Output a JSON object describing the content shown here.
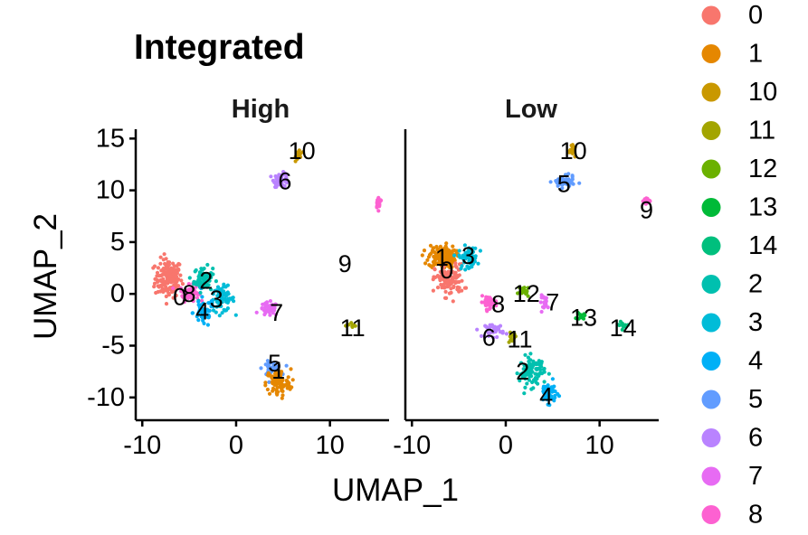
{
  "chart_data": {
    "type": "scatter",
    "title": "Integrated",
    "xlabel": "UMAP_1",
    "ylabel": "UMAP_2",
    "xlim": [
      -10.7,
      16.3
    ],
    "ylim": [
      -12.2,
      15.9
    ],
    "xticks": [
      -10,
      0,
      10
    ],
    "yticks": [
      15,
      10,
      5,
      0,
      -5,
      -10
    ],
    "xtick_labels": [
      "-10",
      "0",
      "10"
    ],
    "ytick_labels": [
      "15",
      "10",
      "5",
      "0",
      "-5",
      "-10"
    ],
    "grid": false,
    "legend_position": "right",
    "legend": [
      {
        "name": "0",
        "color": "#F8766D"
      },
      {
        "name": "1",
        "color": "#E58700"
      },
      {
        "name": "10",
        "color": "#C99800"
      },
      {
        "name": "11",
        "color": "#A3A500"
      },
      {
        "name": "12",
        "color": "#6BB100"
      },
      {
        "name": "13",
        "color": "#00BA38"
      },
      {
        "name": "14",
        "color": "#00BF7D"
      },
      {
        "name": "2",
        "color": "#00C0AF"
      },
      {
        "name": "3",
        "color": "#00BCD8"
      },
      {
        "name": "4",
        "color": "#00B0F6"
      },
      {
        "name": "5",
        "color": "#619CFF"
      },
      {
        "name": "6",
        "color": "#B983FF"
      },
      {
        "name": "7",
        "color": "#E76BF3"
      },
      {
        "name": "8",
        "color": "#FD61D1"
      }
    ],
    "panels": [
      {
        "name": "High",
        "clusters": [
          {
            "id": "0",
            "color": "#F8766D",
            "center": [
              -7.2,
              1.5
            ],
            "spread": [
              1.3,
              1.7
            ],
            "n": 160
          },
          {
            "id": "8",
            "color": "#FD61D1",
            "center": [
              -5.0,
              0.1
            ],
            "spread": [
              0.9,
              0.7
            ],
            "n": 55
          },
          {
            "id": "2",
            "color": "#00C0AF",
            "center": [
              -3.5,
              1.4
            ],
            "spread": [
              0.9,
              1.1
            ],
            "n": 65
          },
          {
            "id": "3",
            "color": "#00BCD8",
            "center": [
              -1.5,
              -0.5
            ],
            "spread": [
              1.2,
              1.1
            ],
            "n": 70
          },
          {
            "id": "4",
            "color": "#00B0F6",
            "center": [
              -3.5,
              -1.8
            ],
            "spread": [
              1.0,
              1.3
            ],
            "n": 45
          },
          {
            "id": "7",
            "color": "#E76BF3",
            "center": [
              3.5,
              -1.5
            ],
            "spread": [
              0.9,
              0.6
            ],
            "n": 45
          },
          {
            "id": "10",
            "color": "#C99800",
            "center": [
              6.7,
              13.5
            ],
            "spread": [
              0.3,
              0.5
            ],
            "n": 22
          },
          {
            "id": "6",
            "color": "#B983FF",
            "center": [
              4.8,
              11.0
            ],
            "spread": [
              0.7,
              0.6
            ],
            "n": 50
          },
          {
            "id": "5",
            "color": "#619CFF",
            "center": [
              3.8,
              -7.2
            ],
            "spread": [
              0.9,
              0.6
            ],
            "n": 45
          },
          {
            "id": "1",
            "color": "#E58700",
            "center": [
              4.5,
              -8.6
            ],
            "spread": [
              1.2,
              1.2
            ],
            "n": 95
          },
          {
            "id": "9",
            "color": "#FD61D1",
            "center": [
              15.2,
              8.8
            ],
            "spread": [
              0.3,
              0.5
            ],
            "n": 22
          },
          {
            "id": "11",
            "color": "#A3A500",
            "center": [
              12.3,
              -3.1
            ],
            "spread": [
              0.6,
              0.3
            ],
            "n": 8
          }
        ],
        "labels": [
          {
            "text": "10",
            "x": 7.0,
            "y": 13.8
          },
          {
            "text": "6",
            "x": 5.2,
            "y": 10.9
          },
          {
            "text": "9",
            "x": 11.6,
            "y": 2.9
          },
          {
            "text": "2",
            "x": -3.2,
            "y": 1.3
          },
          {
            "text": "0",
            "x": -6.0,
            "y": -0.3
          },
          {
            "text": "8",
            "x": -5.0,
            "y": 0.0
          },
          {
            "text": "3",
            "x": -2.1,
            "y": -0.5
          },
          {
            "text": "4",
            "x": -3.6,
            "y": -1.7
          },
          {
            "text": "7",
            "x": 4.3,
            "y": -1.8
          },
          {
            "text": "11",
            "x": 12.4,
            "y": -3.3
          },
          {
            "text": "5",
            "x": 4.1,
            "y": -6.7
          },
          {
            "text": "1",
            "x": 4.5,
            "y": -7.4
          }
        ]
      },
      {
        "name": "Low",
        "clusters": [
          {
            "id": "1",
            "color": "#E58700",
            "center": [
              -6.8,
              3.6
            ],
            "spread": [
              1.3,
              1.0
            ],
            "n": 140
          },
          {
            "id": "0",
            "color": "#F8766D",
            "center": [
              -6.0,
              1.3
            ],
            "spread": [
              1.4,
              1.4
            ],
            "n": 110
          },
          {
            "id": "3",
            "color": "#00BCD8",
            "center": [
              -4.0,
              3.5
            ],
            "spread": [
              0.9,
              1.0
            ],
            "n": 55
          },
          {
            "id": "8",
            "color": "#FD61D1",
            "center": [
              -1.8,
              -0.8
            ],
            "spread": [
              0.8,
              0.5
            ],
            "n": 40
          },
          {
            "id": "12",
            "color": "#6BB100",
            "center": [
              2.0,
              0.2
            ],
            "spread": [
              0.6,
              0.5
            ],
            "n": 18
          },
          {
            "id": "7",
            "color": "#E76BF3",
            "center": [
              4.2,
              -0.8
            ],
            "spread": [
              0.5,
              0.6
            ],
            "n": 20
          },
          {
            "id": "6",
            "color": "#B983FF",
            "center": [
              -1.2,
              -3.5
            ],
            "spread": [
              0.9,
              0.6
            ],
            "n": 35
          },
          {
            "id": "11",
            "color": "#A3A500",
            "center": [
              0.6,
              -4.2
            ],
            "spread": [
              0.5,
              0.4
            ],
            "n": 12
          },
          {
            "id": "2",
            "color": "#00C0AF",
            "center": [
              2.8,
              -7.5
            ],
            "spread": [
              1.2,
              1.3
            ],
            "n": 90
          },
          {
            "id": "4",
            "color": "#00B0F6",
            "center": [
              4.5,
              -9.5
            ],
            "spread": [
              0.8,
              0.9
            ],
            "n": 55
          },
          {
            "id": "10",
            "color": "#C99800",
            "center": [
              7.2,
              13.8
            ],
            "spread": [
              0.3,
              0.4
            ],
            "n": 22
          },
          {
            "id": "5",
            "color": "#619CFF",
            "center": [
              6.2,
              10.8
            ],
            "spread": [
              1.0,
              0.5
            ],
            "n": 65
          },
          {
            "id": "9",
            "color": "#FD61D1",
            "center": [
              15.0,
              9.0
            ],
            "spread": [
              0.3,
              0.4
            ],
            "n": 20
          },
          {
            "id": "13",
            "color": "#00BA38",
            "center": [
              8.0,
              -2.2
            ],
            "spread": [
              0.4,
              0.3
            ],
            "n": 12
          },
          {
            "id": "14",
            "color": "#00BF7D",
            "center": [
              12.4,
              -3.1
            ],
            "spread": [
              0.6,
              0.3
            ],
            "n": 10
          }
        ],
        "labels": [
          {
            "text": "10",
            "x": 7.2,
            "y": 13.8
          },
          {
            "text": "5",
            "x": 6.2,
            "y": 10.6
          },
          {
            "text": "9",
            "x": 15.0,
            "y": 8.1
          },
          {
            "text": "1",
            "x": -6.8,
            "y": 3.5
          },
          {
            "text": "3",
            "x": -4.0,
            "y": 3.7
          },
          {
            "text": "0",
            "x": -6.3,
            "y": 2.3
          },
          {
            "text": "12",
            "x": 2.2,
            "y": 0.0
          },
          {
            "text": "7",
            "x": 5.0,
            "y": -0.8
          },
          {
            "text": "8",
            "x": -0.8,
            "y": -1.0
          },
          {
            "text": "13",
            "x": 8.3,
            "y": -2.3
          },
          {
            "text": "14",
            "x": 12.5,
            "y": -3.3
          },
          {
            "text": "6",
            "x": -1.8,
            "y": -4.2
          },
          {
            "text": "11",
            "x": 1.5,
            "y": -4.4
          },
          {
            "text": "2",
            "x": 1.8,
            "y": -7.5
          },
          {
            "text": "4",
            "x": 4.3,
            "y": -9.9
          }
        ]
      }
    ]
  }
}
